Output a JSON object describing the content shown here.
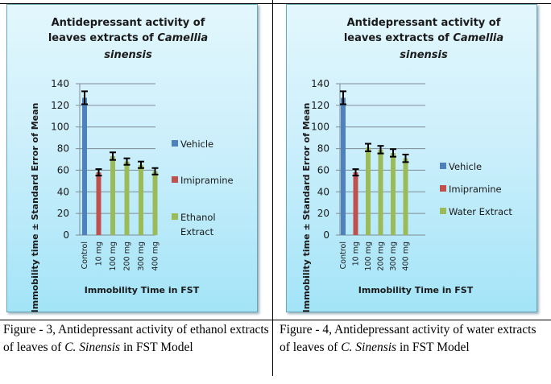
{
  "figures": [
    {
      "caption_prefix": "Figure - 3, Antidepressant activity of ethanol extracts of leaves of ",
      "caption_italic": "C. Sinensis",
      "caption_suffix": " in FST Model"
    },
    {
      "caption_prefix": "Figure - 4, Antidepressant activity of water extracts of leaves of ",
      "caption_italic": "C. Sinensis",
      "caption_suffix": " in FST Model"
    }
  ],
  "chart_data": [
    {
      "type": "bar",
      "title_lines": [
        "Antidepressant activity of",
        "leaves extracts of ",
        "Camellia",
        "sinensis"
      ],
      "title": "Antidepressant activity of leaves extracts of Camellia sinensis",
      "xlabel": "Immobility Time in FST",
      "ylabel": "Immobility time ± Standard Error of Mean",
      "ylim": [
        0,
        140
      ],
      "yticks": [
        0,
        20,
        40,
        60,
        80,
        100,
        120,
        140
      ],
      "grid": true,
      "legend_position": "right",
      "categories": [
        "Control",
        "10 mg",
        "100 mg",
        "200 mg",
        "300 mg",
        "400 mg"
      ],
      "series": [
        {
          "name": "Vehicle",
          "color": "#4f81bd",
          "values": [
            127,
            null,
            null,
            null,
            null,
            null
          ],
          "errors": [
            6,
            null,
            null,
            null,
            null,
            null
          ]
        },
        {
          "name": "Imipramine",
          "color": "#c0504d",
          "values": [
            null,
            58,
            null,
            null,
            null,
            null
          ],
          "errors": [
            null,
            3,
            null,
            null,
            null,
            null
          ]
        },
        {
          "name": "Ethanol Extract",
          "legend_lines": [
            "Ethanol",
            "Extract"
          ],
          "color": "#9bbb59",
          "values": [
            null,
            null,
            73,
            68,
            65,
            59
          ],
          "errors": [
            null,
            null,
            3.5,
            3,
            3,
            3
          ]
        }
      ]
    },
    {
      "type": "bar",
      "title_lines": [
        "Antidepressant activity of",
        "leaves extracts of ",
        "Camellia",
        "sinensis"
      ],
      "title": "Antidepressant activity of leaves extracts of Camellia sinensis",
      "xlabel": "Immobility Time in FST",
      "ylabel": "Immobility time ± Standard Error of Mean",
      "ylim": [
        0,
        140
      ],
      "yticks": [
        0,
        20,
        40,
        60,
        80,
        100,
        120,
        140
      ],
      "grid": true,
      "legend_position": "right",
      "categories": [
        "Control",
        "10 mg",
        "100 mg",
        "200 mg",
        "300 mg",
        "400 mg"
      ],
      "series": [
        {
          "name": "Vehicle",
          "color": "#4f81bd",
          "values": [
            127,
            null,
            null,
            null,
            null,
            null
          ],
          "errors": [
            6,
            null,
            null,
            null,
            null,
            null
          ]
        },
        {
          "name": "Imipramine",
          "color": "#c0504d",
          "values": [
            null,
            58,
            null,
            null,
            null,
            null
          ],
          "errors": [
            null,
            3,
            null,
            null,
            null,
            null
          ]
        },
        {
          "name": "Water Extract",
          "legend_lines": [
            "Water Extract"
          ],
          "color": "#9bbb59",
          "values": [
            null,
            null,
            81,
            79,
            76,
            71
          ],
          "errors": [
            null,
            null,
            3.5,
            3.5,
            3.5,
            3.5
          ]
        }
      ]
    }
  ]
}
